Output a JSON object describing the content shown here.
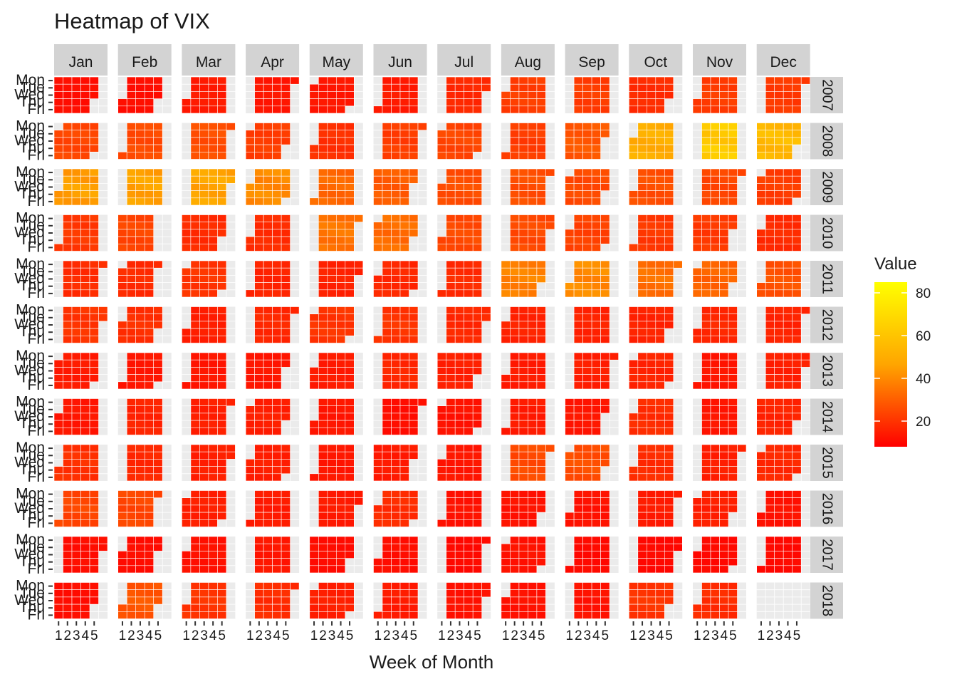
{
  "chart_data": {
    "type": "heatmap",
    "title": "Heatmap of VIX",
    "xlabel": "Week of Month",
    "ylabel": "",
    "legend_title": "Value",
    "legend_ticks": [
      20,
      40,
      60,
      80
    ],
    "legend_range": [
      8,
      85
    ],
    "legend_position": "right",
    "color_low": "#ff0000",
    "color_mid": "#ffa500",
    "color_high": "#ffff00",
    "months": [
      "Jan",
      "Feb",
      "Mar",
      "Apr",
      "May",
      "Jun",
      "Jul",
      "Aug",
      "Sep",
      "Oct",
      "Nov",
      "Dec"
    ],
    "years": [
      "2007",
      "2008",
      "2009",
      "2010",
      "2011",
      "2012",
      "2013",
      "2014",
      "2015",
      "2016",
      "2017",
      "2018"
    ],
    "weekday_labels": [
      "Mon",
      "Tue",
      "Wed",
      "Thu",
      "Fri"
    ],
    "week_tick_labels": [
      "1",
      "2",
      "3",
      "4",
      "5"
    ],
    "year_level": [
      12,
      28,
      42,
      24,
      24,
      18,
      15,
      15,
      17,
      18,
      12,
      18
    ],
    "month_level": [
      [
        11,
        11,
        14,
        13,
        13,
        14,
        17,
        22,
        22,
        18,
        22,
        21
      ],
      [
        24,
        25,
        26,
        22,
        19,
        22,
        24,
        22,
        28,
        50,
        62,
        55
      ],
      [
        45,
        46,
        47,
        40,
        32,
        29,
        26,
        26,
        25,
        26,
        24,
        22
      ],
      [
        21,
        24,
        18,
        18,
        35,
        33,
        25,
        25,
        23,
        21,
        21,
        18
      ],
      [
        18,
        18,
        20,
        16,
        16,
        17,
        18,
        38,
        40,
        34,
        31,
        27
      ],
      [
        20,
        19,
        15,
        17,
        20,
        20,
        17,
        16,
        16,
        16,
        17,
        16
      ],
      [
        14,
        13,
        13,
        13,
        14,
        17,
        15,
        14,
        15,
        16,
        13,
        15
      ],
      [
        13,
        16,
        15,
        15,
        13,
        11,
        12,
        14,
        13,
        18,
        13,
        16
      ],
      [
        19,
        17,
        15,
        15,
        13,
        14,
        13,
        25,
        26,
        18,
        15,
        17
      ],
      [
        24,
        24,
        15,
        14,
        14,
        18,
        12,
        12,
        12,
        14,
        15,
        12
      ],
      [
        11,
        11,
        12,
        13,
        11,
        11,
        10,
        12,
        10,
        10,
        10,
        10
      ],
      [
        11,
        28,
        20,
        18,
        15,
        14,
        12,
        12,
        12,
        20,
        18,
        null
      ]
    ]
  }
}
